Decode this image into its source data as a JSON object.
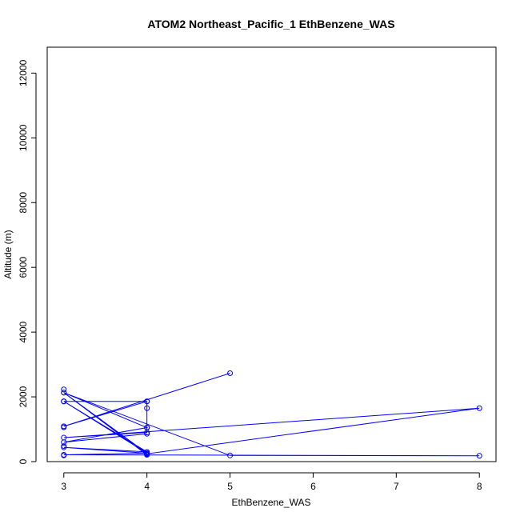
{
  "chart_data": {
    "type": "line",
    "title": "ATOM2 Northeast_Pacific_1 EthBenzene_WAS",
    "xlabel": "EthBenzene_WAS",
    "ylabel": "Altitude (m)",
    "xlim": [
      2.8,
      8.2
    ],
    "ylim": [
      0,
      12800
    ],
    "xticks": [
      3,
      4,
      5,
      6,
      7,
      8
    ],
    "yticks": [
      0,
      2000,
      4000,
      6000,
      8000,
      10000,
      12000
    ],
    "grid": false,
    "legend": "none",
    "color": "#0000ff",
    "series": [
      {
        "points": [
          {
            "x": 5,
            "y": 2730
          },
          {
            "x": 3,
            "y": 1090
          },
          {
            "x": 4,
            "y": 1860
          },
          {
            "x": 3,
            "y": 1860
          },
          {
            "x": 3,
            "y": 1860
          },
          {
            "x": 4,
            "y": 1860
          },
          {
            "x": 4,
            "y": 1650
          },
          {
            "x": 4,
            "y": 1050
          },
          {
            "x": 4,
            "y": 900
          },
          {
            "x": 3,
            "y": 740
          },
          {
            "x": 8,
            "y": 1650
          },
          {
            "x": 4,
            "y": 240
          },
          {
            "x": 4,
            "y": 210
          },
          {
            "x": 3,
            "y": 2130
          },
          {
            "x": 5,
            "y": 190
          },
          {
            "x": 8,
            "y": 180
          },
          {
            "x": 3,
            "y": 210
          },
          {
            "x": 4,
            "y": 260
          },
          {
            "x": 3,
            "y": 440
          },
          {
            "x": 4,
            "y": 300
          },
          {
            "x": 3,
            "y": 1860
          },
          {
            "x": 4,
            "y": 260
          },
          {
            "x": 3,
            "y": 2130
          },
          {
            "x": 4,
            "y": 1050
          },
          {
            "x": 3,
            "y": 600
          },
          {
            "x": 4,
            "y": 860
          }
        ]
      }
    ],
    "extra_points": [
      {
        "x": 3,
        "y": 2230
      },
      {
        "x": 3,
        "y": 1060
      },
      {
        "x": 3,
        "y": 480
      },
      {
        "x": 3,
        "y": 190
      },
      {
        "x": 4,
        "y": 220
      }
    ]
  }
}
